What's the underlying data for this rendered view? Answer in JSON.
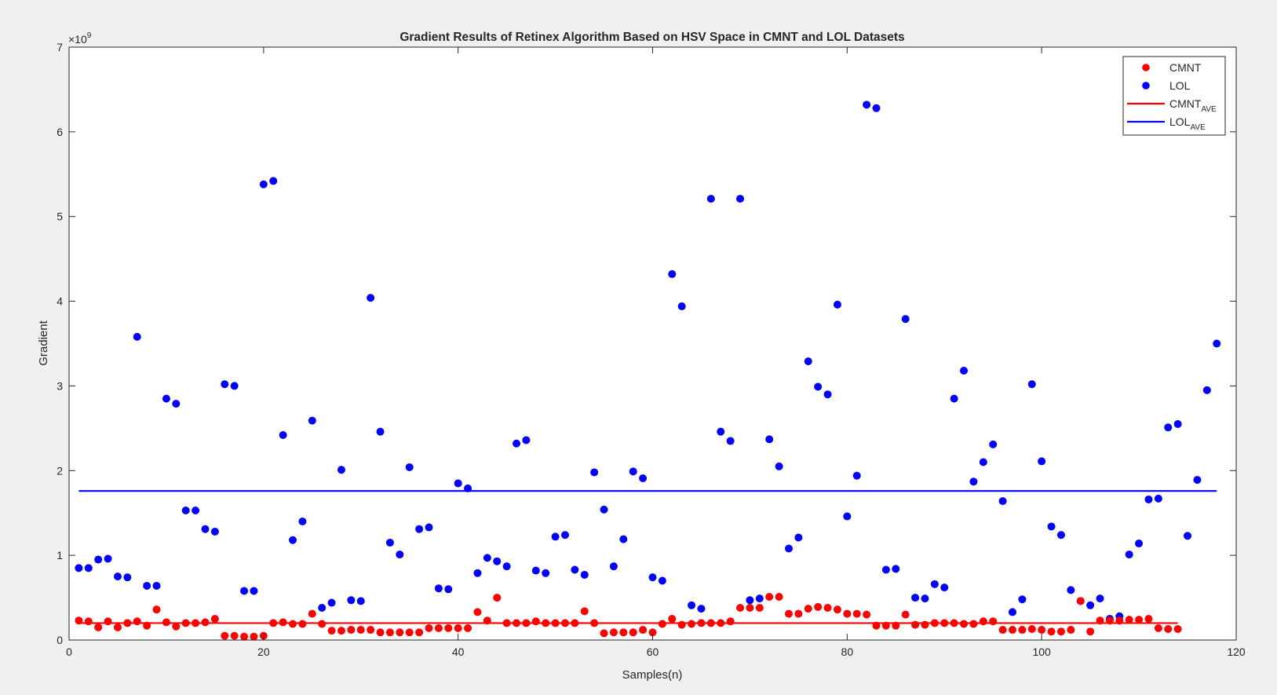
{
  "chart_data": {
    "type": "scatter",
    "title": "Gradient Results of Retinex Algorithm Based on HSV Space in CMNT and LOL Datasets",
    "xlabel": "Samples(n)",
    "ylabel": "Gradient",
    "y_exponent": "×10",
    "y_exponent_power": "9",
    "xlim": [
      0,
      120
    ],
    "ylim": [
      0,
      7
    ],
    "xticks": [
      0,
      20,
      40,
      60,
      80,
      100,
      120
    ],
    "yticks": [
      0,
      1,
      2,
      3,
      4,
      5,
      6,
      7
    ],
    "grid": false,
    "legend_position": "top-right",
    "colors": {
      "cmnt": "#ff0000",
      "lol": "#0000ff"
    },
    "legend": [
      {
        "label": "CMNT",
        "sub": "",
        "marker": "dot",
        "color": "#ff0000"
      },
      {
        "label": "LOL",
        "sub": "",
        "marker": "dot",
        "color": "#0000ff"
      },
      {
        "label": "CMNT",
        "sub": "AVE",
        "marker": "line",
        "color": "#ff0000"
      },
      {
        "label": "LOL",
        "sub": "AVE",
        "marker": "line",
        "color": "#0000ff"
      }
    ],
    "series": [
      {
        "name": "LOL",
        "color": "#0000ff",
        "values": [
          0.85,
          0.85,
          0.95,
          0.96,
          0.75,
          0.74,
          3.58,
          0.64,
          0.64,
          2.85,
          2.79,
          1.53,
          1.53,
          1.31,
          1.28,
          3.02,
          3.0,
          0.58,
          0.58,
          5.38,
          5.42,
          2.42,
          1.18,
          1.4,
          2.59,
          0.38,
          0.44,
          2.01,
          0.47,
          0.46,
          4.04,
          2.46,
          1.15,
          1.01,
          2.04,
          1.31,
          1.33,
          0.61,
          0.6,
          1.85,
          1.79,
          0.79,
          0.97,
          0.93,
          0.87,
          2.32,
          2.36,
          0.82,
          0.79,
          1.22,
          1.24,
          0.83,
          0.77,
          1.98,
          1.54,
          0.87,
          1.19,
          1.99,
          1.91,
          0.74,
          0.7,
          4.32,
          3.94,
          0.41,
          0.37,
          5.21,
          2.46,
          2.35,
          5.21,
          0.47,
          0.49,
          2.37,
          2.05,
          1.08,
          1.21,
          3.29,
          2.99,
          2.9,
          3.96,
          1.46,
          1.94,
          6.32,
          6.28,
          0.83,
          0.84,
          3.79,
          0.5,
          0.49,
          0.66,
          0.62,
          2.85,
          3.18,
          1.87,
          2.1,
          2.31,
          1.64,
          0.33,
          0.48,
          3.02,
          2.11,
          1.34,
          1.24,
          0.59,
          0.46,
          0.41,
          0.49,
          0.25,
          0.28,
          1.01,
          1.14,
          1.66,
          1.67,
          2.51,
          2.55,
          1.23,
          1.89,
          2.95,
          3.5
        ]
      },
      {
        "name": "CMNT",
        "color": "#ff0000",
        "values": [
          0.23,
          0.22,
          0.15,
          0.22,
          0.15,
          0.2,
          0.22,
          0.17,
          0.36,
          0.21,
          0.16,
          0.2,
          0.2,
          0.21,
          0.25,
          0.05,
          0.05,
          0.04,
          0.04,
          0.05,
          0.2,
          0.21,
          0.19,
          0.19,
          0.31,
          0.19,
          0.11,
          0.11,
          0.12,
          0.12,
          0.12,
          0.09,
          0.09,
          0.09,
          0.09,
          0.09,
          0.14,
          0.14,
          0.14,
          0.14,
          0.14,
          0.33,
          0.23,
          0.5,
          0.2,
          0.2,
          0.2,
          0.22,
          0.2,
          0.2,
          0.2,
          0.2,
          0.34,
          0.2,
          0.08,
          0.09,
          0.09,
          0.09,
          0.12,
          0.09,
          0.19,
          0.25,
          0.18,
          0.19,
          0.2,
          0.2,
          0.2,
          0.22,
          0.38,
          0.38,
          0.38,
          0.51,
          0.51,
          0.31,
          0.31,
          0.37,
          0.39,
          0.38,
          0.36,
          0.31,
          0.31,
          0.3,
          0.17,
          0.17,
          0.17,
          0.3,
          0.18,
          0.18,
          0.2,
          0.2,
          0.2,
          0.19,
          0.19,
          0.22,
          0.22,
          0.12,
          0.12,
          0.12,
          0.13,
          0.12,
          0.1,
          0.1,
          0.12,
          0.46,
          0.1,
          0.23,
          0.23,
          0.23,
          0.24,
          0.24,
          0.25,
          0.14,
          0.13,
          0.13
        ]
      },
      {
        "name": "CMNT_AVE",
        "color": "#ff0000",
        "type": "line",
        "x": [
          1,
          114
        ],
        "values": [
          0.2,
          0.2
        ]
      },
      {
        "name": "LOL_AVE",
        "color": "#0000ff",
        "type": "line",
        "x": [
          1,
          118
        ],
        "values": [
          1.76,
          1.76
        ]
      }
    ]
  }
}
